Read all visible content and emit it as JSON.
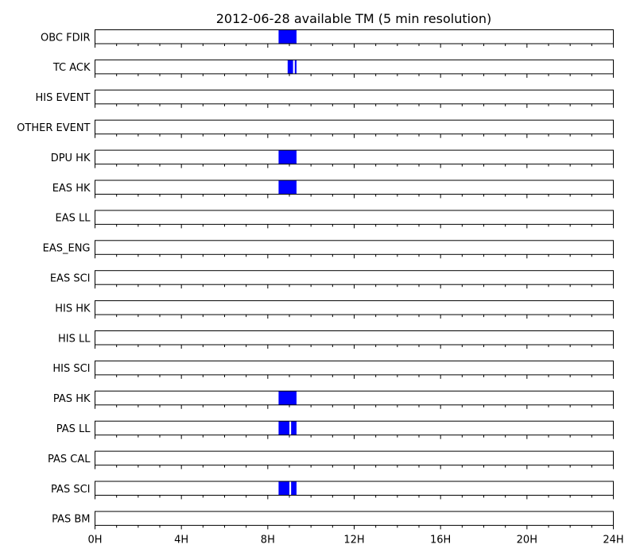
{
  "chart_data": {
    "type": "timeline",
    "title": "2012-06-28 available TM (5 min resolution)",
    "x_unit": "hours",
    "xlim": [
      0,
      24
    ],
    "x_ticks": [
      {
        "value": 0,
        "label": "0H"
      },
      {
        "value": 4,
        "label": "4H"
      },
      {
        "value": 8,
        "label": "8H"
      },
      {
        "value": 12,
        "label": "12H"
      },
      {
        "value": 16,
        "label": "16H"
      },
      {
        "value": 20,
        "label": "20H"
      },
      {
        "value": 24,
        "label": "24H"
      }
    ],
    "minor_tick_step_hours": 1,
    "bar_color": "#0000ff",
    "border_color": "#000000",
    "rows": [
      {
        "name": "OBC FDIR",
        "intervals": [
          [
            8.5,
            9.33
          ]
        ]
      },
      {
        "name": "TC ACK",
        "intervals": [
          [
            8.92,
            9.17
          ],
          [
            9.25,
            9.33
          ]
        ]
      },
      {
        "name": "HIS EVENT",
        "intervals": []
      },
      {
        "name": "OTHER EVENT",
        "intervals": []
      },
      {
        "name": "DPU HK",
        "intervals": [
          [
            8.5,
            9.33
          ]
        ]
      },
      {
        "name": "EAS HK",
        "intervals": [
          [
            8.5,
            9.33
          ]
        ]
      },
      {
        "name": "EAS LL",
        "intervals": []
      },
      {
        "name": "EAS_ENG",
        "intervals": []
      },
      {
        "name": "EAS SCI",
        "intervals": []
      },
      {
        "name": "HIS HK",
        "intervals": []
      },
      {
        "name": "HIS LL",
        "intervals": []
      },
      {
        "name": "HIS SCI",
        "intervals": []
      },
      {
        "name": "PAS HK",
        "intervals": [
          [
            8.5,
            9.33
          ]
        ]
      },
      {
        "name": "PAS LL",
        "intervals": [
          [
            8.5,
            9.0
          ],
          [
            9.08,
            9.33
          ]
        ]
      },
      {
        "name": "PAS CAL",
        "intervals": []
      },
      {
        "name": "PAS SCI",
        "intervals": [
          [
            8.5,
            9.0
          ],
          [
            9.08,
            9.33
          ]
        ]
      },
      {
        "name": "PAS BM",
        "intervals": []
      }
    ]
  }
}
